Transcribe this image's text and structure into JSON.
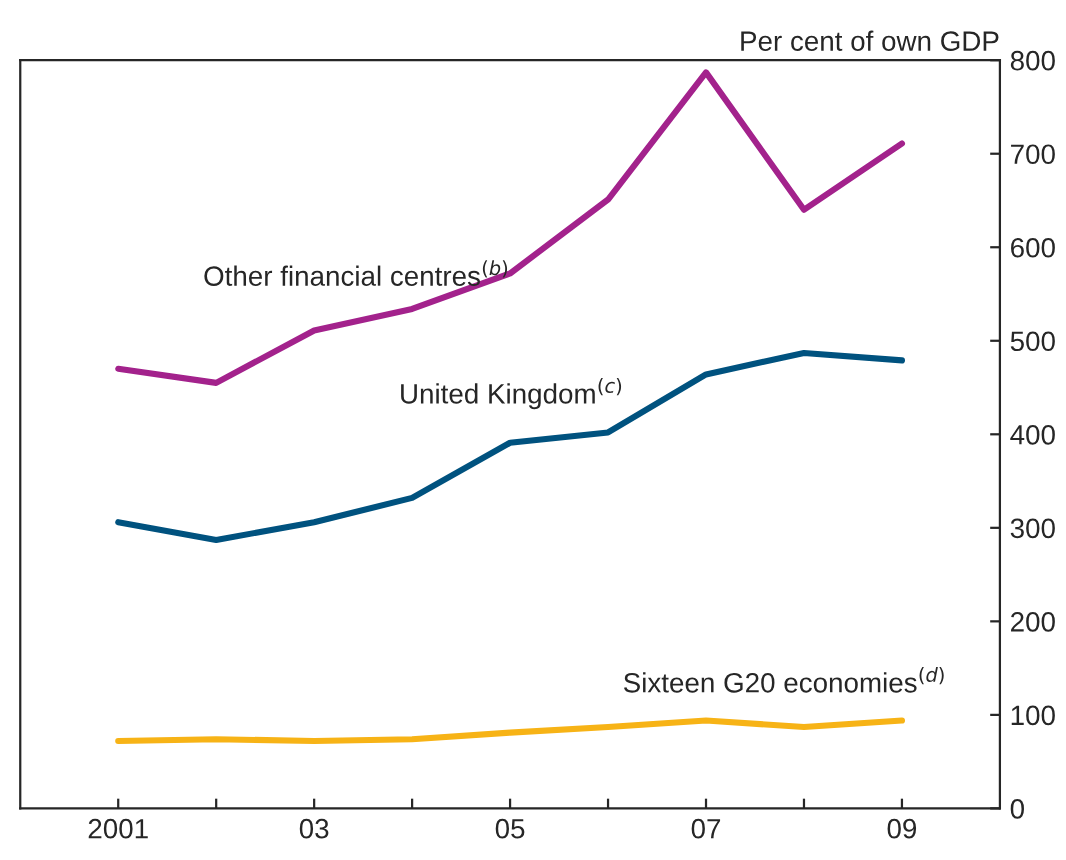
{
  "chart_data": {
    "type": "line",
    "ylabel": "Per cent of own GDP",
    "x": [
      2001,
      2002,
      2003,
      2004,
      2005,
      2006,
      2007,
      2008,
      2009
    ],
    "series": [
      {
        "name": "Other financial centres$^{(b)}$",
        "color": "#a3228c",
        "values": [
          470,
          455,
          511,
          534,
          572,
          651,
          787,
          640,
          711
        ]
      },
      {
        "name": "United Kingdom$^{(c)}$",
        "color": "#00527f",
        "values": [
          306,
          287,
          306,
          332,
          391,
          402,
          464,
          487,
          479
        ]
      },
      {
        "name": "Sixteen G20 economies$^{(d)}$",
        "color": "#f7b316",
        "values": [
          72,
          74,
          72,
          74,
          81,
          87,
          94,
          87,
          94
        ]
      }
    ],
    "xlim": [
      2000,
      2010
    ],
    "xticks": [
      {
        "value": 2001,
        "label": "2001"
      },
      {
        "value": 2002,
        "label": null
      },
      {
        "value": 2003,
        "label": "03"
      },
      {
        "value": 2004,
        "label": null
      },
      {
        "value": 2005,
        "label": "05"
      },
      {
        "value": 2006,
        "label": null
      },
      {
        "value": 2007,
        "label": "07"
      },
      {
        "value": 2008,
        "label": null
      },
      {
        "value": 2009,
        "label": "09"
      }
    ],
    "ylim": [
      0,
      800
    ],
    "yticks": [
      0,
      100,
      200,
      300,
      400,
      500,
      600,
      700,
      800
    ],
    "grid": false,
    "legend": false,
    "marker": "none",
    "line_style": "solid"
  }
}
